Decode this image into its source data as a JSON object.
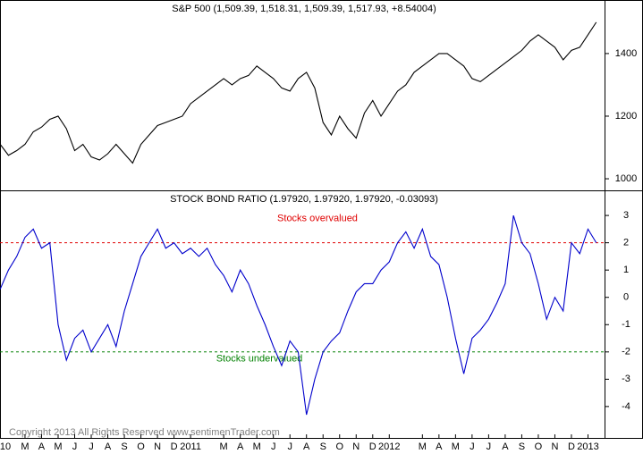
{
  "chart_data": [
    {
      "type": "line",
      "title": "S&P 500 (1,509.39, 1,518.31, 1,509.39, 1,517.93, +8.54004)",
      "x": [
        0.5,
        1,
        1.5,
        2,
        2.5,
        3,
        3.5,
        4,
        4.5,
        5,
        5.5,
        6,
        6.5,
        7,
        7.5,
        8,
        8.5,
        9,
        9.5,
        10,
        10.5,
        11,
        11.5,
        12,
        12.5,
        13,
        13.5,
        14,
        14.5,
        15,
        15.5,
        16,
        16.5,
        17,
        17.5,
        18,
        18.5,
        19,
        19.5,
        20,
        20.5,
        21,
        21.5,
        22,
        22.5,
        23,
        23.5,
        24,
        24.5,
        25,
        25.5,
        26,
        26.5,
        27,
        27.5,
        28,
        28.5,
        29,
        29.5,
        30,
        30.5,
        31,
        31.5,
        32,
        32.5,
        33,
        33.5,
        34,
        34.5,
        35,
        35.5,
        36,
        36.5
      ],
      "series": [
        {
          "color": "#000000",
          "values": [
            1110,
            1075,
            1090,
            1110,
            1150,
            1165,
            1190,
            1200,
            1160,
            1090,
            1110,
            1070,
            1060,
            1080,
            1110,
            1080,
            1050,
            1110,
            1140,
            1170,
            1180,
            1190,
            1200,
            1240,
            1260,
            1280,
            1300,
            1320,
            1300,
            1320,
            1330,
            1360,
            1340,
            1320,
            1290,
            1280,
            1320,
            1340,
            1290,
            1180,
            1140,
            1200,
            1160,
            1130,
            1210,
            1250,
            1200,
            1240,
            1280,
            1300,
            1340,
            1360,
            1380,
            1400,
            1400,
            1380,
            1360,
            1320,
            1310,
            1330,
            1350,
            1370,
            1390,
            1410,
            1440,
            1460,
            1440,
            1420,
            1380,
            1410,
            1420,
            1460,
            1500
          ]
        }
      ],
      "xlim": [
        0.49,
        37.0
      ],
      "ylim": [
        963,
        1571
      ],
      "yticks": [
        1000,
        1200,
        1400
      ]
    },
    {
      "type": "line",
      "title": "STOCK BOND RATIO (1.97920, 1.97920, 1.97920, -0.03093)",
      "x": [
        0.5,
        1,
        1.5,
        2,
        2.5,
        3,
        3.5,
        4,
        4.5,
        5,
        5.5,
        6,
        6.5,
        7,
        7.5,
        8,
        8.5,
        9,
        9.5,
        10,
        10.5,
        11,
        11.5,
        12,
        12.5,
        13,
        13.5,
        14,
        14.5,
        15,
        15.5,
        16,
        16.5,
        17,
        17.5,
        18,
        18.5,
        19,
        19.5,
        20,
        20.5,
        21,
        21.5,
        22,
        22.5,
        23,
        23.5,
        24,
        24.5,
        25,
        25.5,
        26,
        26.5,
        27,
        27.5,
        28,
        28.5,
        29,
        29.5,
        30,
        30.5,
        31,
        31.5,
        32,
        32.5,
        33,
        33.5,
        34,
        34.5,
        35,
        35.5,
        36,
        36.5
      ],
      "series": [
        {
          "color": "#0000cc",
          "values": [
            0.3,
            1.0,
            1.5,
            2.2,
            2.5,
            1.8,
            2.0,
            -1.0,
            -2.3,
            -1.5,
            -1.2,
            -2.0,
            -1.5,
            -1.0,
            -1.8,
            -0.5,
            0.5,
            1.5,
            2.0,
            2.5,
            1.8,
            2.0,
            1.6,
            1.8,
            1.5,
            1.8,
            1.2,
            0.8,
            0.2,
            1.0,
            0.5,
            -0.3,
            -1.0,
            -1.8,
            -2.5,
            -1.6,
            -2.0,
            -4.3,
            -3.0,
            -2.0,
            -1.6,
            -1.3,
            -0.5,
            0.2,
            0.5,
            0.5,
            1.0,
            1.3,
            2.0,
            2.4,
            1.8,
            2.5,
            1.5,
            1.2,
            0.0,
            -1.5,
            -2.8,
            -1.5,
            -1.2,
            -0.8,
            -0.2,
            0.5,
            3.0,
            2.0,
            1.6,
            0.5,
            -0.8,
            0.0,
            -0.5,
            2.0,
            1.6,
            2.5,
            2.0
          ]
        }
      ],
      "reference_lines": [
        {
          "value": 2,
          "color": "#e00000",
          "label": "Stocks overvalued"
        },
        {
          "value": -2,
          "color": "#008000",
          "label": "Stocks undervalued"
        }
      ],
      "xlim": [
        0.49,
        37.0
      ],
      "ylim": [
        -5.15,
        3.92
      ],
      "yticks": [
        -4,
        -3,
        -2,
        -1,
        0,
        1,
        2,
        3
      ],
      "xticks": [
        {
          "value": 0,
          "label": "10"
        },
        {
          "value": 2,
          "label": "M"
        },
        {
          "value": 3,
          "label": "A"
        },
        {
          "value": 4,
          "label": "M"
        },
        {
          "value": 5,
          "label": "J"
        },
        {
          "value": 6,
          "label": "J"
        },
        {
          "value": 7,
          "label": "A"
        },
        {
          "value": 8,
          "label": "S"
        },
        {
          "value": 9,
          "label": "O"
        },
        {
          "value": 10,
          "label": "N"
        },
        {
          "value": 11,
          "label": "D"
        },
        {
          "value": 12,
          "label": "2011"
        },
        {
          "value": 14,
          "label": "M"
        },
        {
          "value": 15,
          "label": "A"
        },
        {
          "value": 16,
          "label": "M"
        },
        {
          "value": 17,
          "label": "J"
        },
        {
          "value": 18,
          "label": "J"
        },
        {
          "value": 19,
          "label": "A"
        },
        {
          "value": 20,
          "label": "S"
        },
        {
          "value": 21,
          "label": "O"
        },
        {
          "value": 22,
          "label": "N"
        },
        {
          "value": 23,
          "label": "D"
        },
        {
          "value": 24,
          "label": "2012"
        },
        {
          "value": 26,
          "label": "M"
        },
        {
          "value": 27,
          "label": "A"
        },
        {
          "value": 28,
          "label": "M"
        },
        {
          "value": 29,
          "label": "J"
        },
        {
          "value": 30,
          "label": "J"
        },
        {
          "value": 31,
          "label": "A"
        },
        {
          "value": 32,
          "label": "S"
        },
        {
          "value": 33,
          "label": "O"
        },
        {
          "value": 34,
          "label": "N"
        },
        {
          "value": 35,
          "label": "D"
        },
        {
          "value": 36,
          "label": "2013"
        }
      ]
    }
  ],
  "footer": "Copyright 2013 All Rights Reserved  www.sentimenTrader.com"
}
